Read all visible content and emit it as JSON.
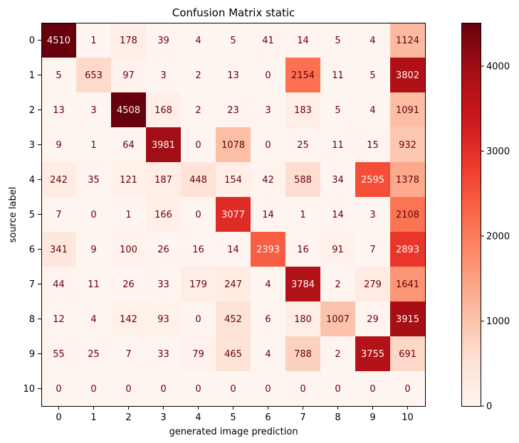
{
  "chart_data": {
    "type": "heatmap",
    "title": "Confusion Matrix static",
    "xlabel": "generated image prediction",
    "ylabel": "source label",
    "x_categories": [
      "0",
      "1",
      "2",
      "3",
      "4",
      "5",
      "6",
      "7",
      "8",
      "9",
      "10"
    ],
    "y_categories": [
      "0",
      "1",
      "2",
      "3",
      "4",
      "5",
      "6",
      "7",
      "8",
      "9",
      "10"
    ],
    "values": [
      [
        4510,
        1,
        178,
        39,
        4,
        5,
        41,
        14,
        5,
        4,
        1124
      ],
      [
        5,
        653,
        97,
        3,
        2,
        13,
        0,
        2154,
        11,
        5,
        3802
      ],
      [
        13,
        3,
        4508,
        168,
        2,
        23,
        3,
        183,
        5,
        4,
        1091
      ],
      [
        9,
        1,
        64,
        3981,
        0,
        1078,
        0,
        25,
        11,
        15,
        932
      ],
      [
        242,
        35,
        121,
        187,
        448,
        154,
        42,
        588,
        34,
        2595,
        1378
      ],
      [
        7,
        0,
        1,
        166,
        0,
        3077,
        14,
        1,
        14,
        3,
        2108
      ],
      [
        341,
        9,
        100,
        26,
        16,
        14,
        2393,
        16,
        91,
        7,
        2893
      ],
      [
        44,
        11,
        26,
        33,
        179,
        247,
        4,
        3784,
        2,
        279,
        1641
      ],
      [
        12,
        4,
        142,
        93,
        0,
        452,
        6,
        180,
        1007,
        29,
        3915
      ],
      [
        55,
        25,
        7,
        33,
        79,
        465,
        4,
        788,
        2,
        3755,
        691
      ],
      [
        0,
        0,
        0,
        0,
        0,
        0,
        0,
        0,
        0,
        0,
        0
      ]
    ],
    "colormap": "Reds",
    "vmin": 0,
    "vmax": 4510,
    "colorbar_ticks": [
      0,
      1000,
      2000,
      3000,
      4000
    ],
    "text_color_dark": "#67000d",
    "text_color_light": "#fff5f0"
  }
}
